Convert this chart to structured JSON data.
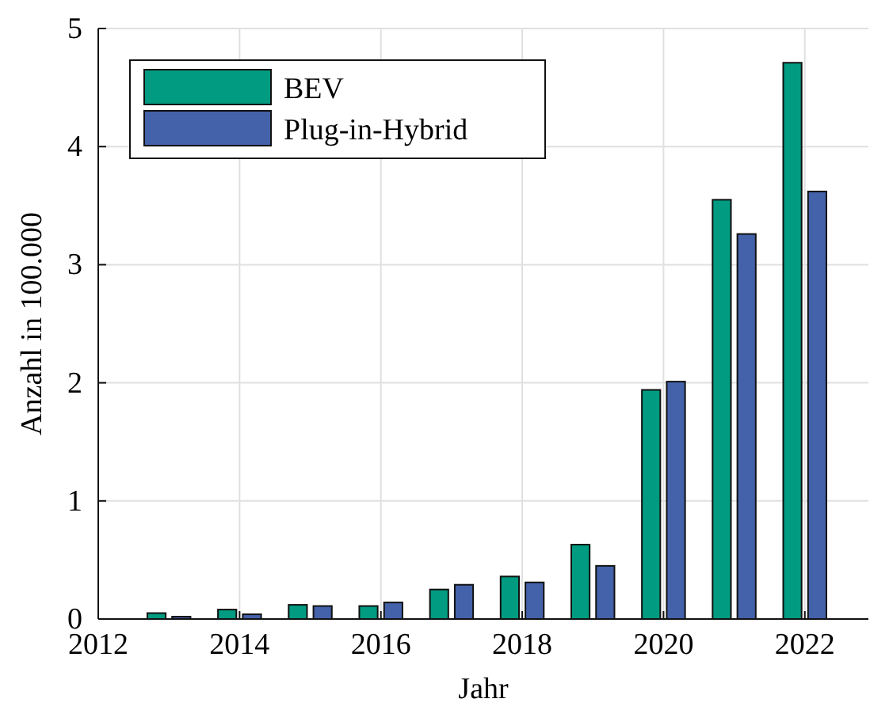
{
  "chart_data": {
    "type": "bar",
    "xlabel": "Jahr",
    "ylabel": "Anzahl in 100.000",
    "x": [
      2013,
      2014,
      2015,
      2016,
      2017,
      2018,
      2019,
      2020,
      2021,
      2022
    ],
    "series": [
      {
        "name": "BEV",
        "color": "#009b80",
        "values": [
          0.05,
          0.08,
          0.12,
          0.11,
          0.25,
          0.36,
          0.63,
          1.94,
          3.55,
          4.71
        ]
      },
      {
        "name": "Plug-in-Hybrid",
        "color": "#4462aa",
        "values": [
          0.02,
          0.04,
          0.11,
          0.14,
          0.29,
          0.31,
          0.45,
          2.01,
          3.26,
          3.62
        ]
      }
    ],
    "xlim": [
      2012,
      2022.9
    ],
    "xticks": [
      2012,
      2014,
      2016,
      2018,
      2020,
      2022
    ],
    "ylim": [
      0,
      5
    ],
    "yticks": [
      0,
      1,
      2,
      3,
      4,
      5
    ],
    "grid": true,
    "legend": "top left"
  }
}
